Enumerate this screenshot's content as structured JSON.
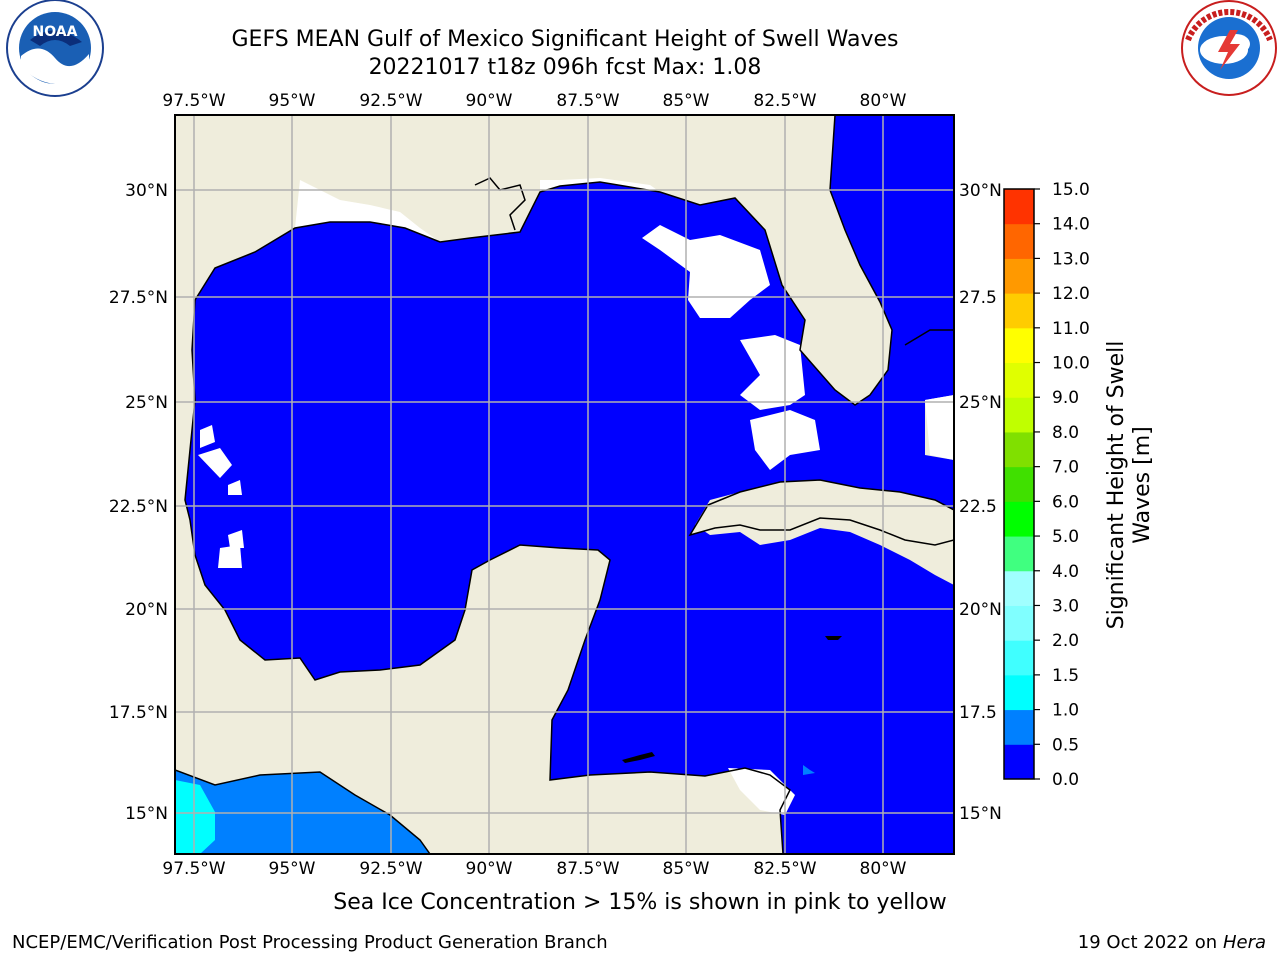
{
  "header": {
    "title_line1": "GEFS MEAN Gulf of Mexico Significant Height of Swell Waves",
    "title_line2": "20221017 t18z 096h fcst   Max: 1.08"
  },
  "logos": {
    "left": "noaa-logo",
    "right": "nws-logo"
  },
  "map": {
    "lon_ticks": [
      "97.5°W",
      "95°W",
      "92.5°W",
      "90°W",
      "87.5°W",
      "85°W",
      "82.5°W",
      "80°W"
    ],
    "lat_ticks_left": [
      "30°N",
      "27.5°N",
      "25°N",
      "22.5°N",
      "20°N",
      "17.5°N",
      "15°N"
    ],
    "lat_ticks_right": [
      "30°N",
      "27.5",
      "25°N",
      "22.5",
      "20°N",
      "17.5",
      "15°N"
    ],
    "colors": {
      "ocean_low": "#0000ff",
      "ocean_half": "#0080ff",
      "ocean_one": "#00ffff",
      "land": "#efeddc",
      "grid": "#b0b0b0"
    }
  },
  "colorbar": {
    "label_line1": "Significant Height of Swell",
    "label_line2": "Waves [m]",
    "ticks": [
      "0.0",
      "0.5",
      "1.0",
      "1.5",
      "2.0",
      "3.0",
      "4.0",
      "5.0",
      "6.0",
      "7.0",
      "8.0",
      "9.0",
      "10.0",
      "11.0",
      "12.0",
      "13.0",
      "14.0",
      "15.0"
    ],
    "colors": [
      "#0000ff",
      "#0080ff",
      "#00ffff",
      "#40ffff",
      "#80ffff",
      "#a0ffff",
      "#40ff80",
      "#00ff00",
      "#40e000",
      "#80e000",
      "#c0ff00",
      "#e0ff00",
      "#ffff00",
      "#ffcc00",
      "#ff9900",
      "#ff6600",
      "#ff3300",
      "#ff0000"
    ]
  },
  "notes": {
    "sea_ice": "Sea Ice Concentration > 15% is shown in pink to yellow"
  },
  "footer": {
    "left": "NCEP/EMC/Verification Post Processing Product Generation Branch",
    "right_prefix": "19 Oct 2022 on",
    "right_system": "Hera"
  }
}
